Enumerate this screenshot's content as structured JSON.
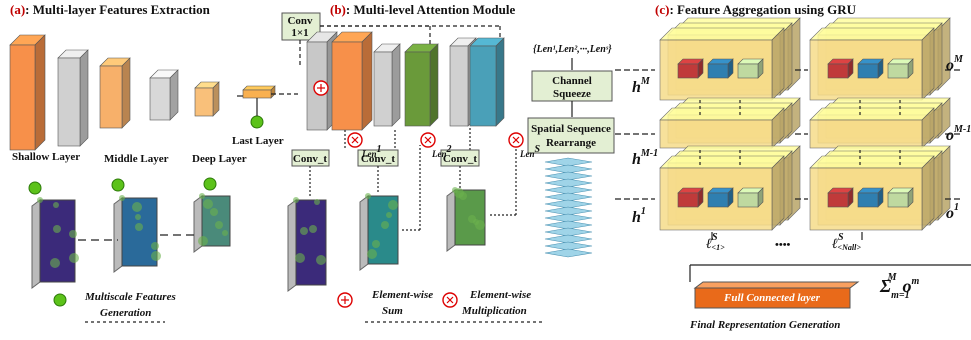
{
  "panels": [
    {
      "label": "(a)",
      "title": ": Multi-layer Features Extraction"
    },
    {
      "label": "(b)",
      "title": ": Multi-level Attention Module"
    },
    {
      "label": "(c)",
      "title": ": Feature Aggregation using GRU"
    }
  ],
  "extraction": {
    "layers": [
      "Shallow Layer",
      "Middle Layer",
      "Deep Layer",
      "Last Layer"
    ]
  },
  "attention": {
    "conv": "Conv",
    "conv_size": "1×1",
    "conv_t": [
      "Conv_t",
      "Conv_t",
      "Conv_t"
    ],
    "len_labels": [
      {
        "base": "Len",
        "sup": "1"
      },
      {
        "base": "Len",
        "sup": "2"
      },
      {
        "base": "Len",
        "sup": "S"
      }
    ],
    "len_set": "{Len¹,Len²,···,Lenˢ}",
    "channel_squeeze": [
      "Channel",
      "Squeeze"
    ],
    "rearrange": [
      "Spatial Sequence",
      "Rearrange"
    ]
  },
  "gru": {
    "hidden": [
      {
        "base": "h",
        "sup": "M"
      },
      {
        "base": "h",
        "sup": "M-1"
      },
      {
        "base": "h",
        "sup": "1"
      }
    ],
    "outputs": [
      {
        "base": "o",
        "sup": "M"
      },
      {
        "base": "o",
        "sup": "M-1"
      },
      {
        "base": "o",
        "sup": "1"
      }
    ],
    "steps": [
      {
        "base": "ℓ",
        "sup": "S",
        "sub": "<1>"
      },
      {
        "base": "ℓ",
        "sup": "S",
        "sub": "<Nall>"
      }
    ],
    "ellipsis": "••••",
    "sum": {
      "symbol": "Σ",
      "sub": "m=1",
      "sup": "M",
      "term": "o",
      "term_sup": "m"
    }
  },
  "final": {
    "fc": "Full Connected layer",
    "caption": "Final Representation Generation"
  },
  "legend": {
    "multiscale": [
      "Multiscale Features",
      "Generation"
    ],
    "sum": [
      "Element-wise",
      "Sum"
    ],
    "mult": [
      "Element-wise",
      "Multiplication"
    ]
  }
}
